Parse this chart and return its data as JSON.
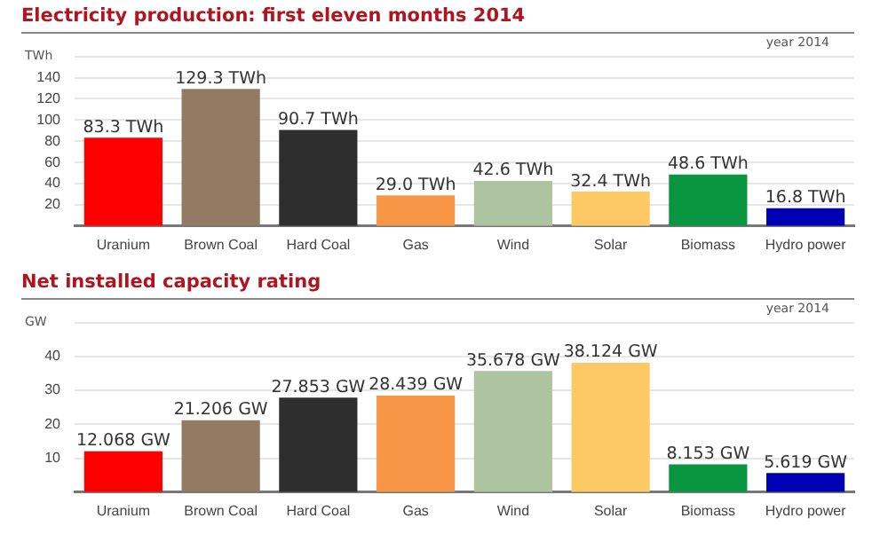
{
  "chart_data": [
    {
      "type": "bar",
      "title": "Electricity production: first eleven months 2014",
      "ylabel": "TWh",
      "annotations": [
        "year 2014"
      ],
      "categories": [
        "Uranium",
        "Brown Coal",
        "Hard Coal",
        "Gas",
        "Wind",
        "Solar",
        "Biomass",
        "Hydro power"
      ],
      "values": [
        83.3,
        129.3,
        90.7,
        29.0,
        42.6,
        32.4,
        48.6,
        16.8
      ],
      "value_labels": [
        "83.3 TWh",
        "129.3 TWh",
        "90.7 TWh",
        "29.0 TWh",
        "42.6 TWh",
        "32.4 TWh",
        "48.6 TWh",
        "16.8 TWh"
      ],
      "colors": [
        "#ff0000",
        "#937a63",
        "#2e2e2e",
        "#f79646",
        "#aec4a0",
        "#fdc965",
        "#0a9641",
        "#0000b4"
      ],
      "ylim": [
        0,
        160
      ],
      "yticks": [
        20,
        40,
        60,
        80,
        100,
        120,
        140,
        {
          "value": 160,
          "label": null
        }
      ],
      "grid": "y",
      "legend": false
    },
    {
      "type": "bar",
      "title": "Net installed capacity rating",
      "ylabel": "GW",
      "annotations": [
        "year 2014"
      ],
      "categories": [
        "Uranium",
        "Brown Coal",
        "Hard Coal",
        "Gas",
        "Wind",
        "Solar",
        "Biomass",
        "Hydro power"
      ],
      "values": [
        12.068,
        21.206,
        27.853,
        28.439,
        35.678,
        38.124,
        8.153,
        5.619
      ],
      "value_labels": [
        "12.068 GW",
        "21.206 GW",
        "27.853 GW",
        "28.439 GW",
        "35.678 GW",
        "38.124 GW",
        "8.153 GW",
        "5.619 GW"
      ],
      "colors": [
        "#ff0000",
        "#937a63",
        "#2e2e2e",
        "#f79646",
        "#aec4a0",
        "#fdc965",
        "#0a9641",
        "#0000b4"
      ],
      "ylim": [
        0,
        50
      ],
      "yticks": [
        10,
        20,
        30,
        40,
        {
          "value": 50,
          "label": null
        }
      ],
      "grid": "y",
      "legend": false
    }
  ]
}
